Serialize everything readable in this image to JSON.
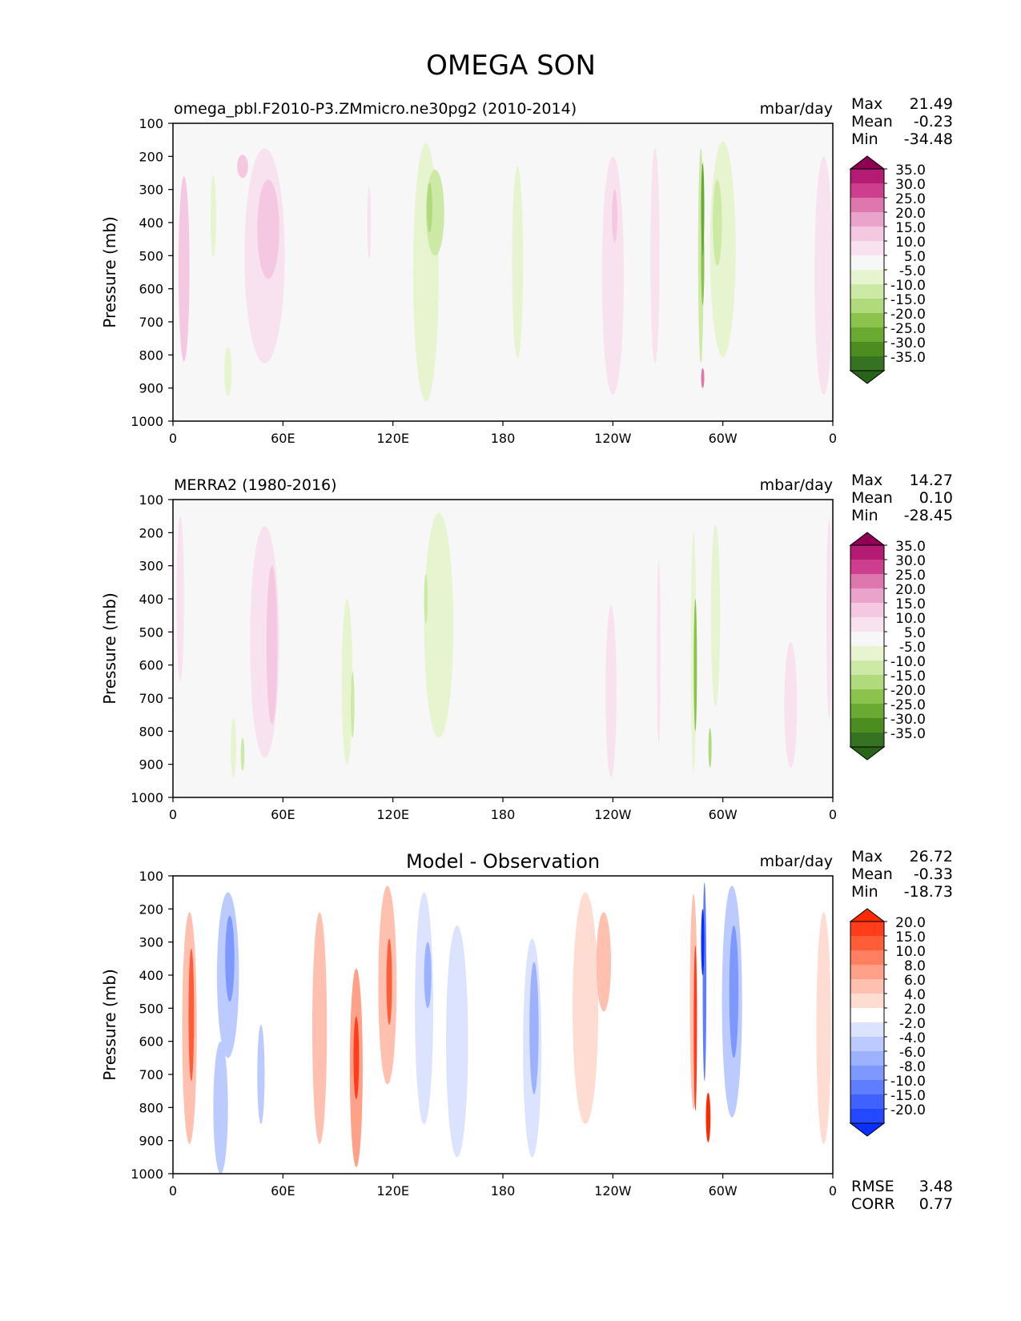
{
  "figure": {
    "title": "OMEGA SON"
  },
  "chart_data": [
    {
      "type": "heatmap",
      "title": "omega_pbl.F2010-P3.ZMmicro.ne30pg2 (2010-2014)",
      "units": "mbar/day",
      "ylabel": "Pressure (mb)",
      "xlabel": "",
      "x_ticks": [
        "0",
        "60E",
        "120E",
        "180",
        "120W",
        "60W",
        "0"
      ],
      "y_ticks": [
        "100",
        "200",
        "300",
        "400",
        "500",
        "600",
        "700",
        "800",
        "900",
        "1000"
      ],
      "xlim": [
        0,
        360
      ],
      "ylim": [
        1000,
        100
      ],
      "stats": {
        "max_label": "Max",
        "max": "21.49",
        "mean_label": "Mean",
        "mean": "-0.23",
        "min_label": "Min",
        "min": "-34.48"
      },
      "colorbar": {
        "levels": [
          "35.0",
          "30.0",
          "25.0",
          "20.0",
          "15.0",
          "10.0",
          "5.0",
          "-5.0",
          "-10.0",
          "-15.0",
          "-20.0",
          "-25.0",
          "-30.0",
          "-35.0"
        ],
        "colors": [
          "#8e0152",
          "#b41b72",
          "#cd3f8e",
          "#de77ae",
          "#eaa3cb",
          "#f5c8e2",
          "#f9e2ef",
          "#f7f7f7",
          "#e6f5d0",
          "#cde9a6",
          "#b0da7b",
          "#8bc34d",
          "#6aa932",
          "#4d8c1f",
          "#357322",
          "#276419"
        ]
      },
      "blobs": [
        {
          "x": 6,
          "p": 540,
          "w": 6,
          "h": 560,
          "v": 10
        },
        {
          "x": 38,
          "p": 230,
          "w": 6,
          "h": 70,
          "v": 12
        },
        {
          "x": 50,
          "p": 500,
          "w": 22,
          "h": 650,
          "v": 8
        },
        {
          "x": 52,
          "p": 420,
          "w": 12,
          "h": 300,
          "v": 12
        },
        {
          "x": 22,
          "p": 380,
          "w": 3,
          "h": 250,
          "v": -7
        },
        {
          "x": 30,
          "p": 850,
          "w": 4,
          "h": 150,
          "v": -6
        },
        {
          "x": 107,
          "p": 400,
          "w": 2,
          "h": 220,
          "v": 7
        },
        {
          "x": 138,
          "p": 550,
          "w": 14,
          "h": 780,
          "v": -7
        },
        {
          "x": 143,
          "p": 370,
          "w": 10,
          "h": 260,
          "v": -12
        },
        {
          "x": 140,
          "p": 355,
          "w": 3,
          "h": 150,
          "v": -18
        },
        {
          "x": 188,
          "p": 520,
          "w": 6,
          "h": 580,
          "v": -6
        },
        {
          "x": 240,
          "p": 560,
          "w": 12,
          "h": 720,
          "v": 7
        },
        {
          "x": 241,
          "p": 380,
          "w": 3,
          "h": 160,
          "v": 12
        },
        {
          "x": 263,
          "p": 500,
          "w": 5,
          "h": 650,
          "v": 6
        },
        {
          "x": 288,
          "p": 500,
          "w": 3,
          "h": 650,
          "v": -14
        },
        {
          "x": 289,
          "p": 360,
          "w": 1.5,
          "h": 280,
          "v": -26
        },
        {
          "x": 289,
          "p": 520,
          "w": 1.5,
          "h": 260,
          "v": -22
        },
        {
          "x": 289,
          "p": 870,
          "w": 1.5,
          "h": 60,
          "v": 22
        },
        {
          "x": 300,
          "p": 480,
          "w": 14,
          "h": 650,
          "v": -8
        },
        {
          "x": 297,
          "p": 400,
          "w": 5,
          "h": 260,
          "v": -11
        },
        {
          "x": 355,
          "p": 560,
          "w": 10,
          "h": 720,
          "v": 8
        }
      ]
    },
    {
      "type": "heatmap",
      "title": "MERRA2 (1980-2016)",
      "units": "mbar/day",
      "ylabel": "Pressure (mb)",
      "xlabel": "",
      "x_ticks": [
        "0",
        "60E",
        "120E",
        "180",
        "120W",
        "60W",
        "0"
      ],
      "y_ticks": [
        "100",
        "200",
        "300",
        "400",
        "500",
        "600",
        "700",
        "800",
        "900",
        "1000"
      ],
      "xlim": [
        0,
        360
      ],
      "ylim": [
        1000,
        100
      ],
      "stats": {
        "max_label": "Max",
        "max": "14.27",
        "mean_label": "Mean",
        "mean": "0.10",
        "min_label": "Min",
        "min": "-28.45"
      },
      "colorbar": {
        "levels": [
          "35.0",
          "30.0",
          "25.0",
          "20.0",
          "15.0",
          "10.0",
          "5.0",
          "-5.0",
          "-10.0",
          "-15.0",
          "-20.0",
          "-25.0",
          "-30.0",
          "-35.0"
        ],
        "colors": [
          "#8e0152",
          "#b41b72",
          "#cd3f8e",
          "#de77ae",
          "#eaa3cb",
          "#f5c8e2",
          "#f9e2ef",
          "#f7f7f7",
          "#e6f5d0",
          "#cde9a6",
          "#b0da7b",
          "#8bc34d",
          "#6aa932",
          "#4d8c1f",
          "#357322",
          "#276419"
        ]
      },
      "blobs": [
        {
          "x": 4,
          "p": 400,
          "w": 4,
          "h": 500,
          "v": 6
        },
        {
          "x": 50,
          "p": 530,
          "w": 16,
          "h": 700,
          "v": 7
        },
        {
          "x": 54,
          "p": 540,
          "w": 6,
          "h": 480,
          "v": 12
        },
        {
          "x": 33,
          "p": 850,
          "w": 3,
          "h": 180,
          "v": -8
        },
        {
          "x": 38,
          "p": 870,
          "w": 2,
          "h": 100,
          "v": -12
        },
        {
          "x": 95,
          "p": 650,
          "w": 6,
          "h": 500,
          "v": -7
        },
        {
          "x": 98,
          "p": 720,
          "w": 2,
          "h": 200,
          "v": -12
        },
        {
          "x": 145,
          "p": 480,
          "w": 16,
          "h": 680,
          "v": -6
        },
        {
          "x": 138,
          "p": 400,
          "w": 2,
          "h": 150,
          "v": -11
        },
        {
          "x": 239,
          "p": 680,
          "w": 6,
          "h": 520,
          "v": 6
        },
        {
          "x": 265,
          "p": 560,
          "w": 2,
          "h": 560,
          "v": 6
        },
        {
          "x": 284,
          "p": 560,
          "w": 3,
          "h": 720,
          "v": -9
        },
        {
          "x": 285,
          "p": 600,
          "w": 1.5,
          "h": 400,
          "v": -22
        },
        {
          "x": 293,
          "p": 850,
          "w": 1.5,
          "h": 120,
          "v": -16
        },
        {
          "x": 296,
          "p": 450,
          "w": 5,
          "h": 550,
          "v": -7
        },
        {
          "x": 337,
          "p": 720,
          "w": 7,
          "h": 380,
          "v": 6
        },
        {
          "x": 358,
          "p": 460,
          "w": 3,
          "h": 600,
          "v": 6
        }
      ]
    },
    {
      "type": "heatmap",
      "title": "Model - Observation",
      "units": "mbar/day",
      "ylabel": "Pressure (mb)",
      "xlabel": "",
      "x_ticks": [
        "0",
        "60E",
        "120E",
        "180",
        "120W",
        "60W",
        "0"
      ],
      "y_ticks": [
        "100",
        "200",
        "300",
        "400",
        "500",
        "600",
        "700",
        "800",
        "900",
        "1000"
      ],
      "xlim": [
        0,
        360
      ],
      "ylim": [
        1000,
        100
      ],
      "stats": {
        "max_label": "Max",
        "max": "26.72",
        "mean_label": "Mean",
        "mean": "-0.33",
        "min_label": "Min",
        "min": "-18.73"
      },
      "metrics": {
        "rmse_label": "RMSE",
        "rmse": "3.48",
        "corr_label": "CORR",
        "corr": "0.77"
      },
      "colorbar": {
        "levels": [
          "20.0",
          "15.0",
          "10.0",
          "8.0",
          "6.0",
          "4.0",
          "2.0",
          "-2.0",
          "-4.0",
          "-6.0",
          "-8.0",
          "-10.0",
          "-15.0",
          "-20.0"
        ],
        "colors": [
          "#ff2a00",
          "#ff3d1a",
          "#ff5c38",
          "#ff8060",
          "#ffa088",
          "#ffc0b0",
          "#ffdcd2",
          "#ffffff",
          "#dbe3ff",
          "#bccbff",
          "#9cb2ff",
          "#7d98ff",
          "#5e7dff",
          "#3f62ff",
          "#2448ff",
          "#0b2fff"
        ]
      },
      "blobs": [
        {
          "x": 9,
          "p": 560,
          "w": 8,
          "h": 700,
          "v": 5
        },
        {
          "x": 10,
          "p": 520,
          "w": 3,
          "h": 400,
          "v": 10
        },
        {
          "x": 30,
          "p": 400,
          "w": 12,
          "h": 500,
          "v": -6
        },
        {
          "x": 31,
          "p": 350,
          "w": 5,
          "h": 260,
          "v": -10
        },
        {
          "x": 26,
          "p": 800,
          "w": 8,
          "h": 400,
          "v": -5
        },
        {
          "x": 48,
          "p": 700,
          "w": 4,
          "h": 300,
          "v": -6
        },
        {
          "x": 80,
          "p": 560,
          "w": 8,
          "h": 700,
          "v": 4
        },
        {
          "x": 100,
          "p": 680,
          "w": 7,
          "h": 600,
          "v": 6
        },
        {
          "x": 100,
          "p": 650,
          "w": 3,
          "h": 250,
          "v": 15
        },
        {
          "x": 117,
          "p": 430,
          "w": 10,
          "h": 600,
          "v": 5
        },
        {
          "x": 118,
          "p": 420,
          "w": 3,
          "h": 260,
          "v": 10
        },
        {
          "x": 137,
          "p": 500,
          "w": 10,
          "h": 700,
          "v": -4
        },
        {
          "x": 139,
          "p": 400,
          "w": 4,
          "h": 200,
          "v": -8
        },
        {
          "x": 155,
          "p": 600,
          "w": 12,
          "h": 700,
          "v": -3
        },
        {
          "x": 196,
          "p": 620,
          "w": 10,
          "h": 660,
          "v": -4
        },
        {
          "x": 197,
          "p": 560,
          "w": 5,
          "h": 400,
          "v": -7
        },
        {
          "x": 225,
          "p": 500,
          "w": 14,
          "h": 700,
          "v": 3
        },
        {
          "x": 235,
          "p": 360,
          "w": 8,
          "h": 300,
          "v": 5
        },
        {
          "x": 284,
          "p": 480,
          "w": 4,
          "h": 650,
          "v": 5
        },
        {
          "x": 285,
          "p": 560,
          "w": 1.5,
          "h": 500,
          "v": 16
        },
        {
          "x": 292,
          "p": 830,
          "w": 2.5,
          "h": 150,
          "v": 22
        },
        {
          "x": 290,
          "p": 420,
          "w": 2,
          "h": 600,
          "v": -14
        },
        {
          "x": 289,
          "p": 300,
          "w": 1,
          "h": 200,
          "v": -22
        },
        {
          "x": 305,
          "p": 480,
          "w": 11,
          "h": 700,
          "v": -6
        },
        {
          "x": 306,
          "p": 450,
          "w": 5,
          "h": 400,
          "v": -10
        },
        {
          "x": 355,
          "p": 560,
          "w": 8,
          "h": 700,
          "v": 3
        }
      ]
    }
  ]
}
